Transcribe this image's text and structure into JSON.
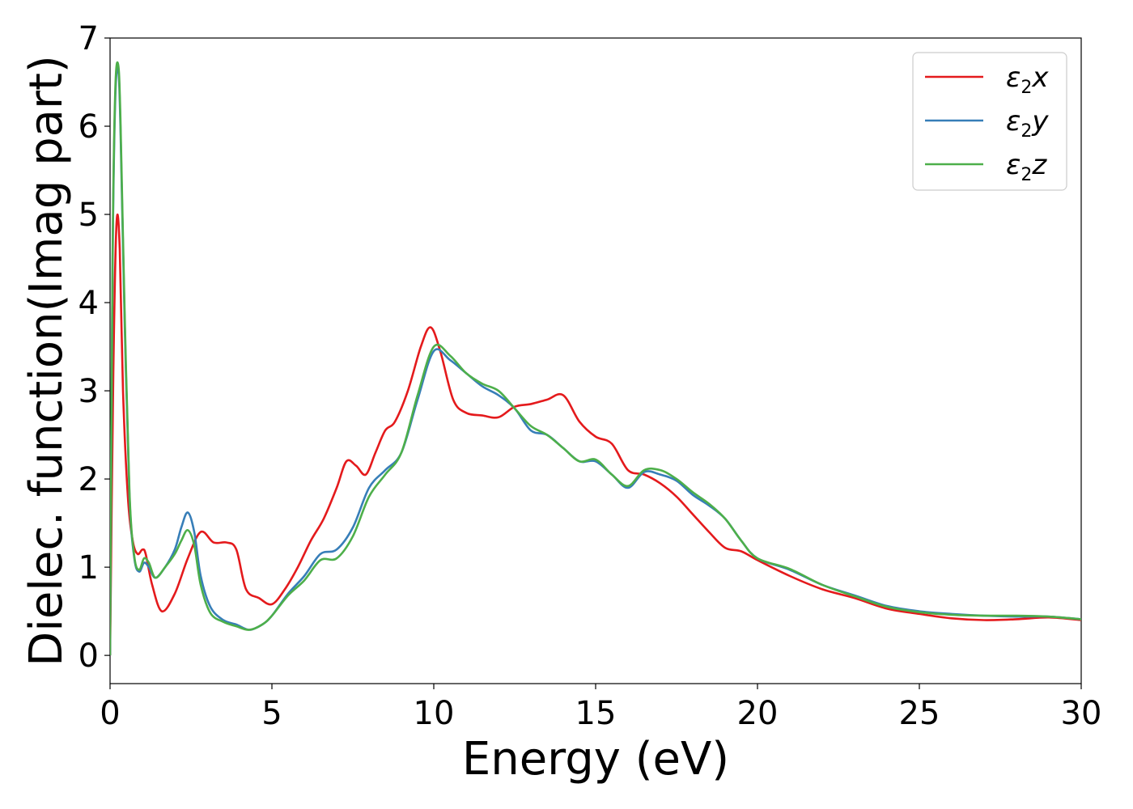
{
  "chart_data": {
    "type": "line",
    "title": "",
    "xlabel": "Energy (eV)",
    "ylabel": "Dielec. function(Imag part)",
    "xlim": [
      0,
      30
    ],
    "ylim": [
      -0.32,
      7.0
    ],
    "xticks": [
      "0",
      "5",
      "10",
      "15",
      "20",
      "25",
      "30"
    ],
    "yticks": [
      "0",
      "1",
      "2",
      "3",
      "4",
      "5",
      "6",
      "7"
    ],
    "grid": false,
    "legend_position": "top-right",
    "series": [
      {
        "name": "ε₂x",
        "sym": "ε",
        "sub": "2",
        "axis": "x",
        "color": "#e41a1c",
        "x": [
          0,
          0.1,
          0.2,
          0.3,
          0.4,
          0.55,
          0.7,
          0.85,
          1.0,
          1.1,
          1.3,
          1.6,
          2.0,
          2.4,
          2.8,
          3.2,
          3.6,
          3.9,
          4.2,
          4.6,
          5.0,
          5.4,
          5.8,
          6.2,
          6.6,
          7.0,
          7.3,
          7.6,
          7.9,
          8.2,
          8.5,
          8.8,
          9.2,
          9.6,
          9.9,
          10.2,
          10.6,
          11.0,
          11.5,
          12.0,
          12.5,
          13.0,
          13.5,
          14.0,
          14.5,
          15.0,
          15.5,
          16.0,
          16.5,
          17.0,
          17.5,
          18.0,
          18.5,
          19.0,
          19.5,
          20.0,
          21.0,
          22.0,
          23.0,
          24.0,
          25.0,
          26.0,
          27.0,
          28.0,
          29.0,
          30.0
        ],
        "y": [
          0.0,
          3.2,
          4.9,
          4.6,
          3.0,
          1.8,
          1.3,
          1.15,
          1.2,
          1.15,
          0.8,
          0.5,
          0.7,
          1.1,
          1.4,
          1.28,
          1.28,
          1.2,
          0.75,
          0.65,
          0.58,
          0.75,
          1.0,
          1.3,
          1.55,
          1.9,
          2.2,
          2.15,
          2.05,
          2.3,
          2.55,
          2.65,
          3.0,
          3.5,
          3.72,
          3.45,
          2.9,
          2.75,
          2.72,
          2.7,
          2.82,
          2.85,
          2.9,
          2.95,
          2.65,
          2.48,
          2.4,
          2.1,
          2.05,
          1.95,
          1.8,
          1.6,
          1.4,
          1.22,
          1.18,
          1.08,
          0.9,
          0.75,
          0.65,
          0.53,
          0.47,
          0.42,
          0.4,
          0.41,
          0.43,
          0.4
        ]
      },
      {
        "name": "ε₂y",
        "sym": "ε",
        "sub": "2",
        "axis": "y",
        "color": "#377eb8",
        "x": [
          0,
          0.08,
          0.16,
          0.25,
          0.32,
          0.45,
          0.6,
          0.75,
          0.9,
          1.05,
          1.2,
          1.4,
          1.7,
          2.0,
          2.2,
          2.4,
          2.6,
          2.8,
          3.1,
          3.5,
          3.9,
          4.3,
          4.7,
          5.0,
          5.5,
          6.0,
          6.5,
          7.0,
          7.5,
          8.0,
          8.5,
          9.0,
          9.5,
          10.0,
          10.5,
          11.0,
          11.5,
          12.0,
          12.5,
          13.0,
          13.5,
          14.0,
          14.5,
          15.0,
          15.5,
          16.0,
          16.5,
          17.0,
          17.5,
          18.0,
          18.5,
          19.0,
          19.5,
          20.0,
          21.0,
          22.0,
          23.0,
          24.0,
          25.0,
          26.0,
          27.0,
          28.0,
          29.0,
          30.0
        ],
        "y": [
          0.0,
          4.5,
          6.3,
          6.65,
          6.0,
          3.8,
          1.8,
          1.1,
          0.95,
          1.05,
          1.0,
          0.88,
          1.0,
          1.2,
          1.45,
          1.62,
          1.4,
          0.9,
          0.55,
          0.4,
          0.35,
          0.29,
          0.35,
          0.45,
          0.7,
          0.9,
          1.15,
          1.2,
          1.45,
          1.9,
          2.1,
          2.3,
          2.9,
          3.45,
          3.35,
          3.2,
          3.05,
          2.95,
          2.8,
          2.55,
          2.5,
          2.35,
          2.2,
          2.2,
          2.05,
          1.9,
          2.08,
          2.05,
          1.98,
          1.82,
          1.7,
          1.55,
          1.3,
          1.1,
          0.97,
          0.8,
          0.68,
          0.56,
          0.5,
          0.47,
          0.45,
          0.44,
          0.44,
          0.41
        ]
      },
      {
        "name": "ε₂z",
        "sym": "ε",
        "sub": "2",
        "axis": "z",
        "color": "#4daf4a",
        "x": [
          0,
          0.08,
          0.16,
          0.25,
          0.32,
          0.45,
          0.6,
          0.75,
          0.9,
          1.05,
          1.2,
          1.4,
          1.7,
          2.0,
          2.2,
          2.4,
          2.6,
          2.8,
          3.1,
          3.5,
          3.9,
          4.3,
          4.7,
          5.0,
          5.5,
          6.0,
          6.5,
          7.0,
          7.5,
          8.0,
          8.5,
          9.0,
          9.5,
          10.0,
          10.5,
          11.0,
          11.5,
          12.0,
          12.5,
          13.0,
          13.5,
          14.0,
          14.5,
          15.0,
          15.5,
          16.0,
          16.5,
          17.0,
          17.5,
          18.0,
          18.5,
          19.0,
          19.5,
          20.0,
          21.0,
          22.0,
          23.0,
          24.0,
          25.0,
          26.0,
          27.0,
          28.0,
          29.0,
          30.0
        ],
        "y": [
          0.0,
          4.6,
          6.4,
          6.7,
          6.1,
          3.9,
          1.85,
          1.12,
          0.97,
          1.1,
          1.05,
          0.88,
          1.0,
          1.15,
          1.3,
          1.42,
          1.25,
          0.8,
          0.48,
          0.38,
          0.33,
          0.29,
          0.35,
          0.45,
          0.68,
          0.85,
          1.08,
          1.1,
          1.35,
          1.8,
          2.05,
          2.3,
          2.95,
          3.5,
          3.4,
          3.2,
          3.08,
          3.0,
          2.8,
          2.6,
          2.5,
          2.35,
          2.2,
          2.22,
          2.05,
          1.92,
          2.1,
          2.1,
          2.0,
          1.85,
          1.72,
          1.55,
          1.3,
          1.1,
          0.98,
          0.8,
          0.67,
          0.55,
          0.49,
          0.46,
          0.45,
          0.45,
          0.44,
          0.41
        ]
      }
    ]
  }
}
